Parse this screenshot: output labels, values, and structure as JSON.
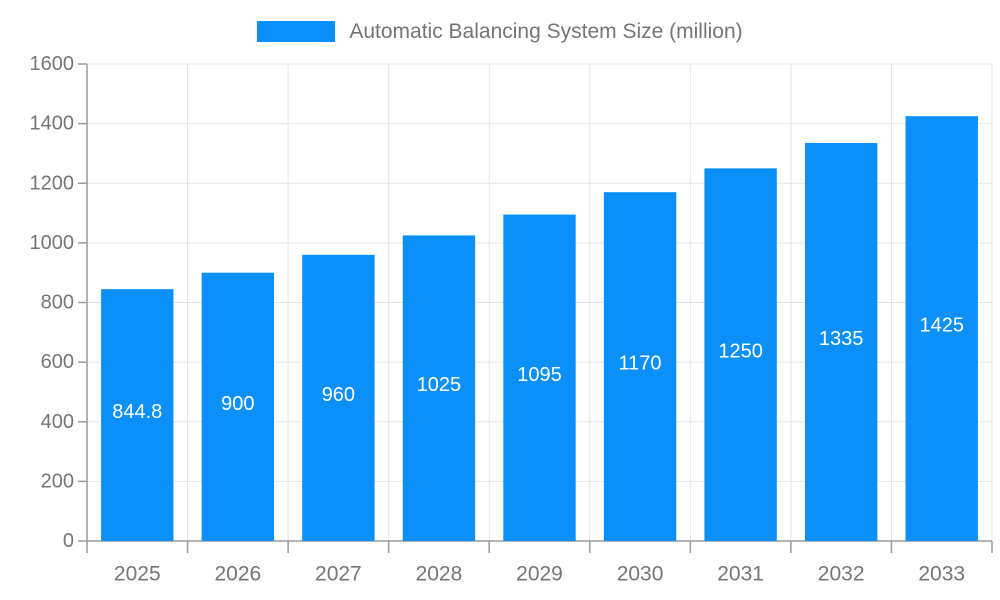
{
  "legend": {
    "label": "Automatic Balancing System Size (million)"
  },
  "colors": {
    "bar": "#0a90f8",
    "grid": "#e4e4e4",
    "axis": "#9a9a9a",
    "tick_label": "#757575",
    "value_label": "#ffffff",
    "background": "#ffffff"
  },
  "chart_data": {
    "type": "bar",
    "title": "Automatic Balancing System Size (million)",
    "series_name": "Automatic Balancing System Size (million)",
    "categories": [
      "2025",
      "2026",
      "2027",
      "2028",
      "2029",
      "2030",
      "2031",
      "2032",
      "2033"
    ],
    "values": [
      844.8,
      900,
      960,
      1025,
      1095,
      1170,
      1250,
      1335,
      1425
    ],
    "value_labels": [
      "844.8",
      "900",
      "960",
      "1025",
      "1095",
      "1170",
      "1250",
      "1335",
      "1425"
    ],
    "xlabel": "",
    "ylabel": "",
    "ylim": [
      0,
      1600
    ],
    "ytick_step": 200,
    "ytick_labels": [
      "0",
      "200",
      "400",
      "600",
      "800",
      "1000",
      "1200",
      "1400",
      "1600"
    ],
    "grid": true,
    "legend_position": "top",
    "value_label_position": "inside-middle"
  }
}
